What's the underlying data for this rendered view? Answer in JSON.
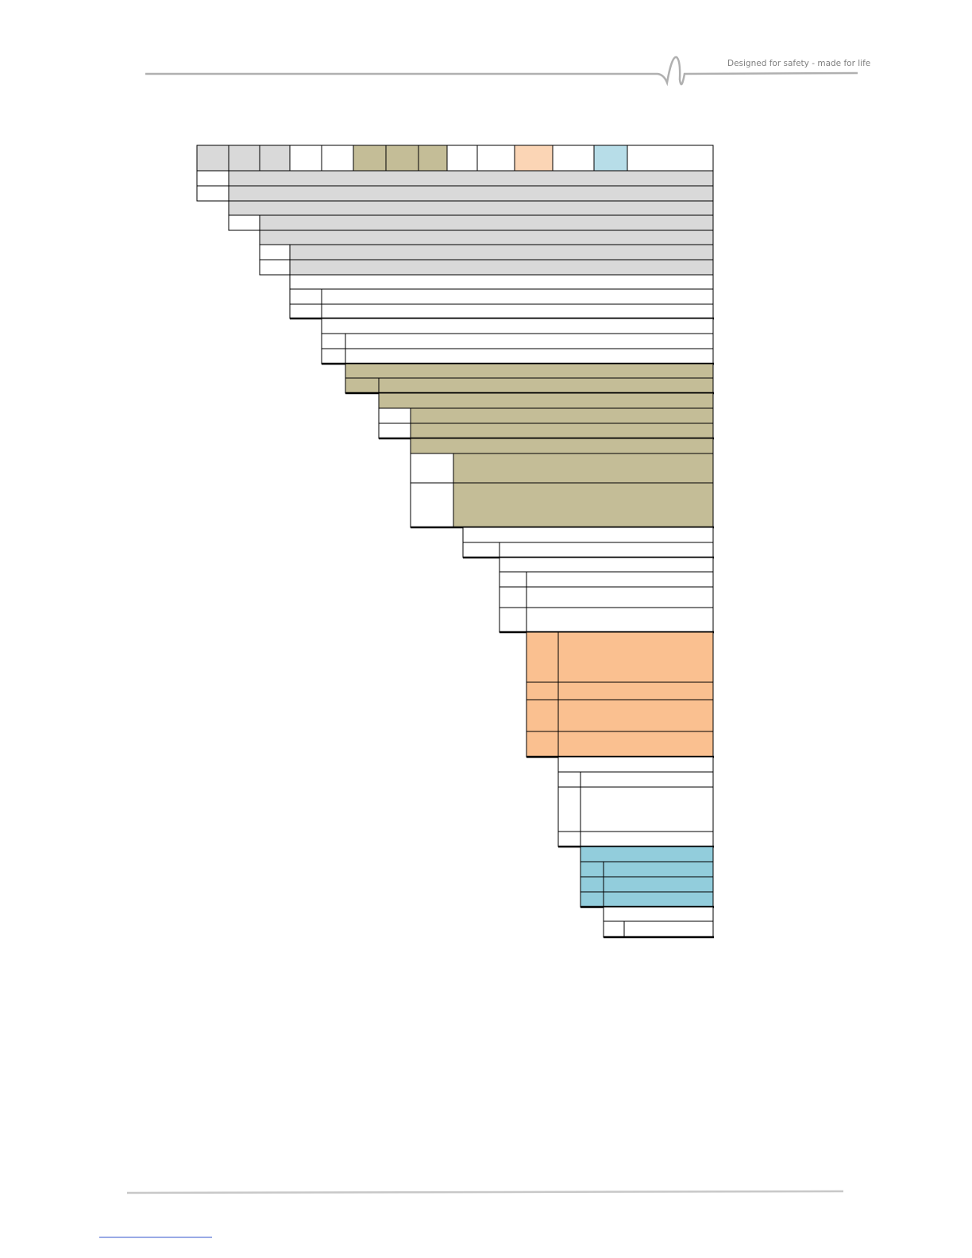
{
  "header": {
    "tagline": "Designed for safety - made for life"
  }
}
